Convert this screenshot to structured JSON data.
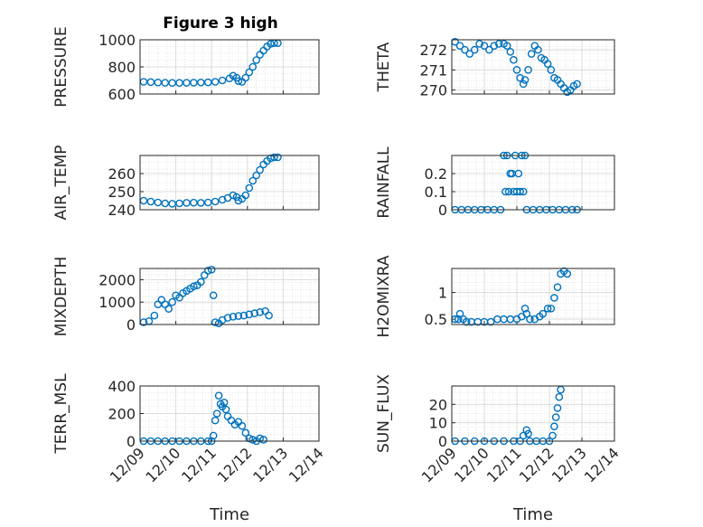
{
  "figure": {
    "title": "Figure 3 high"
  },
  "chart_data": [
    {
      "type": "scatter",
      "id": "pressure",
      "title": "Figure 3 high",
      "ylabel": "PRESSURE",
      "ylim": [
        600,
        1000
      ],
      "yticks": [
        "600",
        "800",
        "1000"
      ],
      "ytick_values": [
        600,
        800,
        1000
      ],
      "xlim": [
        "12/09",
        "12/14"
      ],
      "xlabel": "",
      "points": [
        [
          0.1,
          690
        ],
        [
          0.3,
          688
        ],
        [
          0.5,
          685
        ],
        [
          0.7,
          683
        ],
        [
          0.9,
          682
        ],
        [
          1.1,
          682
        ],
        [
          1.3,
          683
        ],
        [
          1.5,
          684
        ],
        [
          1.7,
          685
        ],
        [
          1.9,
          686
        ],
        [
          2.1,
          690
        ],
        [
          2.3,
          700
        ],
        [
          2.5,
          715
        ],
        [
          2.6,
          735
        ],
        [
          2.7,
          720
        ],
        [
          2.75,
          695
        ],
        [
          2.85,
          690
        ],
        [
          2.95,
          720
        ],
        [
          3.05,
          760
        ],
        [
          3.15,
          800
        ],
        [
          3.25,
          850
        ],
        [
          3.35,
          890
        ],
        [
          3.45,
          920
        ],
        [
          3.55,
          950
        ],
        [
          3.65,
          970
        ],
        [
          3.75,
          975
        ],
        [
          3.85,
          975
        ]
      ]
    },
    {
      "type": "scatter",
      "id": "theta",
      "title": "",
      "ylabel": "THETA",
      "ylim": [
        269.8,
        272.5
      ],
      "yticks": [
        "270",
        "271",
        "272"
      ],
      "ytick_values": [
        270,
        271,
        272
      ],
      "xlim": [
        "12/09",
        "12/14"
      ],
      "xlabel": "",
      "points": [
        [
          0.1,
          272.4
        ],
        [
          0.25,
          272.2
        ],
        [
          0.4,
          272.0
        ],
        [
          0.55,
          271.8
        ],
        [
          0.7,
          272.0
        ],
        [
          0.85,
          272.3
        ],
        [
          1.0,
          272.2
        ],
        [
          1.15,
          272.0
        ],
        [
          1.3,
          272.2
        ],
        [
          1.45,
          272.3
        ],
        [
          1.6,
          272.3
        ],
        [
          1.7,
          272.2
        ],
        [
          1.8,
          271.9
        ],
        [
          1.9,
          271.5
        ],
        [
          2.0,
          271.0
        ],
        [
          2.1,
          270.6
        ],
        [
          2.2,
          270.3
        ],
        [
          2.25,
          270.5
        ],
        [
          2.35,
          271.0
        ],
        [
          2.45,
          271.8
        ],
        [
          2.55,
          272.2
        ],
        [
          2.65,
          272.0
        ],
        [
          2.75,
          271.6
        ],
        [
          2.85,
          271.5
        ],
        [
          2.95,
          271.3
        ],
        [
          3.05,
          271.0
        ],
        [
          3.15,
          270.6
        ],
        [
          3.25,
          270.5
        ],
        [
          3.35,
          270.3
        ],
        [
          3.45,
          270.1
        ],
        [
          3.55,
          269.9
        ],
        [
          3.65,
          270.0
        ],
        [
          3.75,
          270.2
        ],
        [
          3.85,
          270.3
        ]
      ]
    },
    {
      "type": "scatter",
      "id": "air_temp",
      "title": "",
      "ylabel": "AIR_TEMP",
      "ylim": [
        240,
        270
      ],
      "yticks": [
        "240",
        "250",
        "260"
      ],
      "ytick_values": [
        240,
        250,
        260
      ],
      "xlim": [
        "12/09",
        "12/14"
      ],
      "xlabel": "",
      "points": [
        [
          0.1,
          245
        ],
        [
          0.3,
          244.5
        ],
        [
          0.5,
          244
        ],
        [
          0.7,
          243.5
        ],
        [
          0.9,
          243.3
        ],
        [
          1.1,
          243.5
        ],
        [
          1.3,
          243.8
        ],
        [
          1.5,
          243.9
        ],
        [
          1.7,
          243.8
        ],
        [
          1.9,
          244
        ],
        [
          2.1,
          244.5
        ],
        [
          2.3,
          245.5
        ],
        [
          2.45,
          246.5
        ],
        [
          2.6,
          248
        ],
        [
          2.7,
          247
        ],
        [
          2.75,
          245
        ],
        [
          2.85,
          246
        ],
        [
          2.95,
          248
        ],
        [
          3.05,
          252
        ],
        [
          3.15,
          256
        ],
        [
          3.25,
          259
        ],
        [
          3.35,
          262
        ],
        [
          3.45,
          265
        ],
        [
          3.55,
          267
        ],
        [
          3.65,
          268.5
        ],
        [
          3.75,
          269
        ],
        [
          3.85,
          269
        ]
      ]
    },
    {
      "type": "scatter",
      "id": "rainfall",
      "title": "",
      "ylabel": "RAINFALL",
      "ylim": [
        0,
        0.3
      ],
      "yticks": [
        "0",
        "0.1",
        "0.2"
      ],
      "ytick_values": [
        0,
        0.1,
        0.2
      ],
      "xlim": [
        "12/09",
        "12/14"
      ],
      "xlabel": "",
      "points": [
        [
          0.1,
          0
        ],
        [
          0.3,
          0
        ],
        [
          0.5,
          0
        ],
        [
          0.7,
          0
        ],
        [
          0.9,
          0
        ],
        [
          1.1,
          0
        ],
        [
          1.3,
          0
        ],
        [
          1.5,
          0
        ],
        [
          1.6,
          0.3
        ],
        [
          1.65,
          0.1
        ],
        [
          1.7,
          0.3
        ],
        [
          1.75,
          0.1
        ],
        [
          1.8,
          0.2
        ],
        [
          1.85,
          0.2
        ],
        [
          1.9,
          0.1
        ],
        [
          1.95,
          0.3
        ],
        [
          2.0,
          0.1
        ],
        [
          2.05,
          0.2
        ],
        [
          2.1,
          0.1
        ],
        [
          2.15,
          0.3
        ],
        [
          2.2,
          0.1
        ],
        [
          2.25,
          0.3
        ],
        [
          2.3,
          0
        ],
        [
          2.5,
          0
        ],
        [
          2.7,
          0
        ],
        [
          2.9,
          0
        ],
        [
          3.1,
          0
        ],
        [
          3.3,
          0
        ],
        [
          3.5,
          0
        ],
        [
          3.7,
          0
        ],
        [
          3.85,
          0
        ]
      ]
    },
    {
      "type": "scatter",
      "id": "mixdepth",
      "title": "",
      "ylabel": "MIXDEPTH",
      "ylim": [
        0,
        2500
      ],
      "yticks": [
        "0",
        "1000",
        "2000"
      ],
      "ytick_values": [
        0,
        1000,
        2000
      ],
      "xlim": [
        "12/09",
        "12/14"
      ],
      "xlabel": "",
      "points": [
        [
          0.1,
          100
        ],
        [
          0.25,
          150
        ],
        [
          0.4,
          400
        ],
        [
          0.5,
          900
        ],
        [
          0.6,
          1100
        ],
        [
          0.7,
          900
        ],
        [
          0.8,
          700
        ],
        [
          0.9,
          1000
        ],
        [
          1.0,
          1300
        ],
        [
          1.1,
          1200
        ],
        [
          1.2,
          1400
        ],
        [
          1.3,
          1500
        ],
        [
          1.4,
          1600
        ],
        [
          1.5,
          1700
        ],
        [
          1.6,
          1750
        ],
        [
          1.7,
          1900
        ],
        [
          1.8,
          2200
        ],
        [
          1.9,
          2400
        ],
        [
          2.0,
          2450
        ],
        [
          2.05,
          1300
        ],
        [
          2.1,
          100
        ],
        [
          2.2,
          50
        ],
        [
          2.3,
          200
        ],
        [
          2.45,
          300
        ],
        [
          2.6,
          350
        ],
        [
          2.75,
          380
        ],
        [
          2.9,
          400
        ],
        [
          3.05,
          450
        ],
        [
          3.2,
          500
        ],
        [
          3.35,
          550
        ],
        [
          3.5,
          600
        ],
        [
          3.6,
          400
        ]
      ]
    },
    {
      "type": "scatter",
      "id": "h2omixra",
      "title": "",
      "ylabel": "H2OMIXRA",
      "ylim": [
        0.4,
        1.45
      ],
      "yticks": [
        "0.5",
        "1"
      ],
      "ytick_values": [
        0.5,
        1
      ],
      "xlim": [
        "12/09",
        "12/14"
      ],
      "xlabel": "",
      "points": [
        [
          0.1,
          0.5
        ],
        [
          0.2,
          0.5
        ],
        [
          0.25,
          0.6
        ],
        [
          0.35,
          0.5
        ],
        [
          0.45,
          0.45
        ],
        [
          0.6,
          0.45
        ],
        [
          0.8,
          0.45
        ],
        [
          1.0,
          0.45
        ],
        [
          1.2,
          0.45
        ],
        [
          1.4,
          0.5
        ],
        [
          1.6,
          0.5
        ],
        [
          1.8,
          0.5
        ],
        [
          2.0,
          0.5
        ],
        [
          2.15,
          0.55
        ],
        [
          2.25,
          0.7
        ],
        [
          2.3,
          0.6
        ],
        [
          2.4,
          0.5
        ],
        [
          2.55,
          0.5
        ],
        [
          2.7,
          0.55
        ],
        [
          2.8,
          0.6
        ],
        [
          2.95,
          0.7
        ],
        [
          3.05,
          0.7
        ],
        [
          3.15,
          0.9
        ],
        [
          3.25,
          1.1
        ],
        [
          3.35,
          1.35
        ],
        [
          3.45,
          1.4
        ],
        [
          3.55,
          1.35
        ]
      ]
    },
    {
      "type": "scatter",
      "id": "terr_msl",
      "title": "",
      "ylabel": "TERR_MSL",
      "ylim": [
        0,
        400
      ],
      "yticks": [
        "0",
        "200",
        "400"
      ],
      "ytick_values": [
        0,
        200,
        400
      ],
      "xlim": [
        "12/09",
        "12/14"
      ],
      "xlabel": "Time",
      "xticks": [
        "12/09",
        "12/10",
        "12/11",
        "12/12",
        "12/13",
        "12/14"
      ],
      "points": [
        [
          0.1,
          0
        ],
        [
          0.3,
          0
        ],
        [
          0.5,
          0
        ],
        [
          0.7,
          0
        ],
        [
          0.9,
          0
        ],
        [
          1.1,
          0
        ],
        [
          1.3,
          0
        ],
        [
          1.5,
          0
        ],
        [
          1.7,
          0
        ],
        [
          1.9,
          0
        ],
        [
          2.0,
          0
        ],
        [
          2.05,
          40
        ],
        [
          2.1,
          150
        ],
        [
          2.15,
          200
        ],
        [
          2.2,
          330
        ],
        [
          2.25,
          270
        ],
        [
          2.3,
          250
        ],
        [
          2.35,
          280
        ],
        [
          2.4,
          230
        ],
        [
          2.45,
          180
        ],
        [
          2.55,
          150
        ],
        [
          2.65,
          120
        ],
        [
          2.75,
          140
        ],
        [
          2.85,
          110
        ],
        [
          2.95,
          60
        ],
        [
          3.05,
          20
        ],
        [
          3.15,
          10
        ],
        [
          3.25,
          0
        ],
        [
          3.35,
          20
        ],
        [
          3.45,
          10
        ]
      ]
    },
    {
      "type": "scatter",
      "id": "sun_flux",
      "title": "",
      "ylabel": "SUN_FLUX",
      "ylim": [
        0,
        30
      ],
      "yticks": [
        "0",
        "10",
        "20"
      ],
      "ytick_values": [
        0,
        10,
        20
      ],
      "xlim": [
        "12/09",
        "12/14"
      ],
      "xlabel": "Time",
      "xticks": [
        "12/09",
        "12/10",
        "12/11",
        "12/12",
        "12/13",
        "12/14"
      ],
      "points": [
        [
          0.1,
          0
        ],
        [
          0.4,
          0
        ],
        [
          0.7,
          0
        ],
        [
          1.0,
          0
        ],
        [
          1.3,
          0
        ],
        [
          1.6,
          0
        ],
        [
          1.9,
          0
        ],
        [
          2.1,
          0
        ],
        [
          2.2,
          3
        ],
        [
          2.3,
          6
        ],
        [
          2.35,
          4
        ],
        [
          2.4,
          0
        ],
        [
          2.6,
          0
        ],
        [
          2.8,
          0
        ],
        [
          3.0,
          0
        ],
        [
          3.1,
          3
        ],
        [
          3.15,
          8
        ],
        [
          3.2,
          13
        ],
        [
          3.25,
          18
        ],
        [
          3.3,
          24
        ],
        [
          3.35,
          28
        ]
      ]
    }
  ]
}
